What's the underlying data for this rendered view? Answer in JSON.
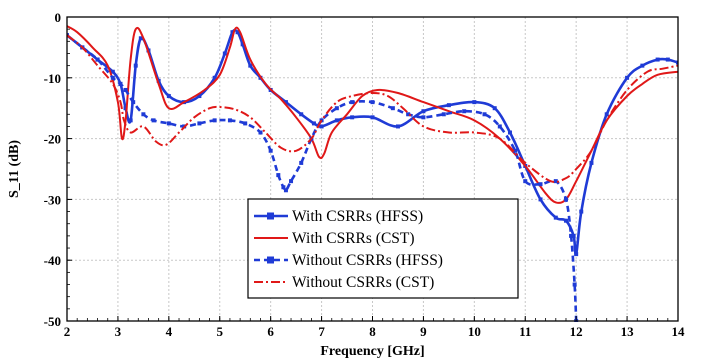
{
  "chart_data": {
    "type": "line",
    "xlabel": "Frequency [GHz]",
    "ylabel": "S_11 (dB)",
    "xlim": [
      2,
      14
    ],
    "ylim": [
      -50,
      0
    ],
    "xticks": [
      "2",
      "3",
      "4",
      "5",
      "6",
      "7",
      "8",
      "9",
      "10",
      "11",
      "12",
      "13",
      "14"
    ],
    "yticks": [
      "0",
      "-10",
      "-20",
      "-30",
      "-40",
      "-50"
    ],
    "grid": true,
    "legend_position": "bottom-center",
    "series": [
      {
        "name": "With CSRRs (HFSS)",
        "color": "#1f3bd6",
        "style": "solid-markers",
        "x": [
          2.0,
          2.3,
          2.6,
          2.9,
          3.05,
          3.15,
          3.25,
          3.35,
          3.45,
          3.6,
          3.8,
          4.0,
          4.3,
          4.6,
          4.9,
          5.1,
          5.25,
          5.35,
          5.45,
          5.6,
          5.8,
          6.0,
          6.3,
          6.6,
          6.85,
          7.0,
          7.3,
          7.6,
          8.0,
          8.5,
          9.0,
          9.5,
          10.0,
          10.4,
          10.7,
          11.0,
          11.3,
          11.6,
          11.8,
          11.95,
          12.0,
          12.1,
          12.3,
          12.6,
          13.0,
          13.3,
          13.6,
          13.8,
          14.0
        ],
        "y": [
          -3,
          -5,
          -7,
          -9,
          -11,
          -15,
          -17,
          -8,
          -3.5,
          -5.5,
          -10.5,
          -13,
          -14,
          -13,
          -10,
          -6,
          -2.5,
          -2.5,
          -4.5,
          -8,
          -10,
          -12,
          -14,
          -16,
          -17.5,
          -18,
          -17,
          -16.5,
          -16.5,
          -18,
          -15.5,
          -14.5,
          -14,
          -15,
          -19,
          -24.5,
          -30,
          -33,
          -33.5,
          -36,
          -39,
          -32,
          -24,
          -16,
          -10,
          -8,
          -7,
          -7,
          -7.5
        ]
      },
      {
        "name": "With CSRRs (CST)",
        "color": "#e01818",
        "style": "solid",
        "x": [
          2.0,
          2.2,
          2.5,
          2.8,
          3.0,
          3.08,
          3.15,
          3.25,
          3.35,
          3.5,
          3.8,
          4.0,
          4.3,
          4.7,
          5.0,
          5.2,
          5.3,
          5.4,
          5.6,
          5.9,
          6.2,
          6.5,
          6.8,
          6.95,
          7.05,
          7.2,
          7.5,
          7.8,
          8.1,
          8.5,
          9.0,
          9.5,
          10.0,
          10.5,
          11.0,
          11.4,
          11.6,
          11.8,
          12.0,
          12.3,
          12.6,
          13.0,
          13.3,
          13.6,
          14.0
        ],
        "y": [
          -1.5,
          -2.5,
          -5,
          -8,
          -14,
          -20,
          -17,
          -7,
          -2,
          -3.5,
          -11,
          -15,
          -14,
          -12,
          -9.5,
          -5,
          -2,
          -2.5,
          -7,
          -11,
          -13.5,
          -16.5,
          -20,
          -23,
          -22.5,
          -19,
          -16,
          -13,
          -12,
          -12.5,
          -14,
          -15.5,
          -17,
          -20,
          -24.5,
          -29,
          -30.5,
          -30,
          -27,
          -22,
          -17,
          -13,
          -11,
          -9.5,
          -9
        ]
      },
      {
        "name": "Without CSRRs (HFSS)",
        "color": "#1f3bd6",
        "style": "dashed-markers",
        "x": [
          2.0,
          2.3,
          2.6,
          2.9,
          3.05,
          3.15,
          3.3,
          3.5,
          3.7,
          4.0,
          4.3,
          4.6,
          4.9,
          5.2,
          5.5,
          5.8,
          6.0,
          6.15,
          6.25,
          6.3,
          6.4,
          6.6,
          6.8,
          7.0,
          7.3,
          7.6,
          8.0,
          8.4,
          8.7,
          9.0,
          9.4,
          9.8,
          10.2,
          10.5,
          10.8,
          11.0,
          11.3,
          11.6,
          11.8,
          11.9,
          11.97,
          12.0
        ],
        "y": [
          -3,
          -5,
          -7,
          -10,
          -11,
          -12,
          -14,
          -16,
          -17,
          -17.5,
          -18,
          -17.5,
          -17,
          -17,
          -17.5,
          -19,
          -22,
          -26,
          -28,
          -28.5,
          -27,
          -24,
          -20,
          -17,
          -15,
          -14,
          -14,
          -15,
          -16,
          -16.5,
          -16,
          -15.5,
          -16,
          -18,
          -22,
          -27,
          -27.5,
          -27,
          -30,
          -36,
          -44,
          -50
        ]
      },
      {
        "name": "Without CSRRs (CST)",
        "color": "#e01818",
        "style": "dashdot",
        "x": [
          2.0,
          2.3,
          2.6,
          2.9,
          3.05,
          3.12,
          3.25,
          3.5,
          3.75,
          3.95,
          4.2,
          4.5,
          4.8,
          5.0,
          5.3,
          5.6,
          5.9,
          6.2,
          6.5,
          6.8,
          7.0,
          7.3,
          7.6,
          8.0,
          8.3,
          8.6,
          9.0,
          9.5,
          10.0,
          10.5,
          11.0,
          11.5,
          11.8,
          12.0,
          12.3,
          12.6,
          13.0,
          13.4,
          13.7,
          14.0
        ],
        "y": [
          -3,
          -5,
          -8,
          -11,
          -14,
          -17,
          -19,
          -18,
          -20.5,
          -21,
          -19,
          -16.5,
          -15,
          -14.8,
          -15.2,
          -16.5,
          -19,
          -21.5,
          -22,
          -20,
          -17,
          -14,
          -13,
          -12.5,
          -13,
          -15,
          -18,
          -19,
          -19,
          -20,
          -24,
          -27,
          -26.5,
          -25,
          -22,
          -17,
          -12,
          -9,
          -8.5,
          -8
        ]
      }
    ]
  }
}
